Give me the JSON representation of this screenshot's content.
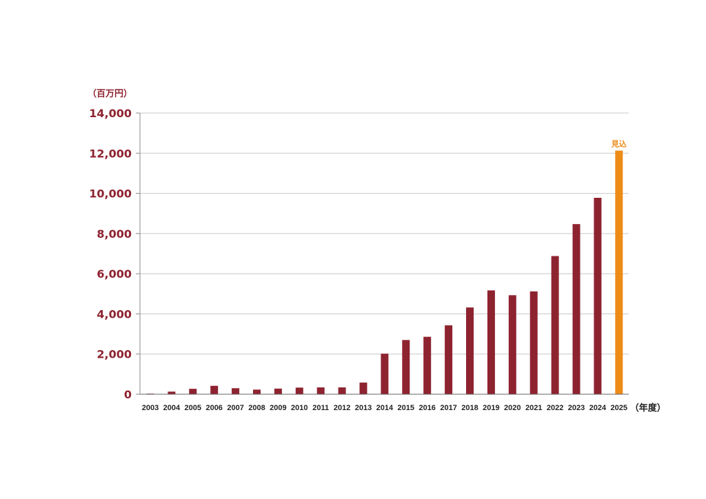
{
  "chart_data": {
    "type": "bar",
    "ylabel": "（百万円）",
    "xlabel": "（年度）",
    "ylim": [
      0,
      14000
    ],
    "yticks": [
      0,
      2000,
      4000,
      6000,
      8000,
      10000,
      12000,
      14000
    ],
    "ytick_labels": [
      "0",
      "2,000",
      "4,000",
      "6,000",
      "8,000",
      "10,000",
      "12,000",
      "14,000"
    ],
    "categories": [
      "2003",
      "2004",
      "2005",
      "2006",
      "2007",
      "2008",
      "2009",
      "2010",
      "2011",
      "2012",
      "2013",
      "2014",
      "2015",
      "2016",
      "2017",
      "2018",
      "2019",
      "2020",
      "2021",
      "2022",
      "2023",
      "2024",
      "2025"
    ],
    "values": [
      30,
      130,
      270,
      420,
      300,
      230,
      280,
      330,
      340,
      340,
      580,
      2020,
      2700,
      2860,
      3430,
      4320,
      5170,
      4930,
      5120,
      6880,
      8470,
      9780,
      12130
    ],
    "grid": true,
    "colors": {
      "bar": "#8e2330",
      "highlight": "#ed8b16",
      "axis_text": "#8e2330",
      "grid": "#c8c8c8"
    },
    "annotations": [
      {
        "category": "2025",
        "text": "見込"
      }
    ]
  }
}
